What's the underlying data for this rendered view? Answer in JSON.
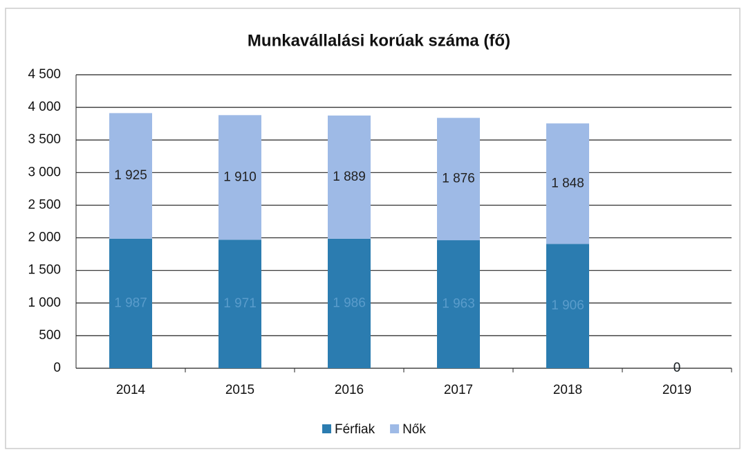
{
  "chart_data": {
    "type": "stacked-bar",
    "title": "Munkavállalási korúak száma (fő)",
    "categories": [
      "2014",
      "2015",
      "2016",
      "2017",
      "2018",
      "2019"
    ],
    "series": [
      {
        "name": "Férfiak",
        "color": "#2b7cb0",
        "values": [
          1987,
          1971,
          1986,
          1963,
          1906,
          0
        ],
        "value_labels": [
          "1 987",
          "1 971",
          "1 986",
          "1 963",
          "1 906",
          "0"
        ]
      },
      {
        "name": "Nők",
        "color": "#9ebae6",
        "values": [
          1925,
          1910,
          1889,
          1876,
          1848,
          0
        ],
        "value_labels": [
          "1 925",
          "1 910",
          "1 889",
          "1 876",
          "1 848",
          "0"
        ]
      }
    ],
    "ylim": [
      0,
      4500
    ],
    "yticks": [
      {
        "value": 0,
        "label": "0"
      },
      {
        "value": 500,
        "label": "500"
      },
      {
        "value": 1000,
        "label": "1 000"
      },
      {
        "value": 1500,
        "label": "1 500"
      },
      {
        "value": 2000,
        "label": "2 000"
      },
      {
        "value": 2500,
        "label": "2 500"
      },
      {
        "value": 3000,
        "label": "3 000"
      },
      {
        "value": 3500,
        "label": "3 500"
      },
      {
        "value": 4000,
        "label": "4 000"
      },
      {
        "value": 4500,
        "label": "4 500"
      }
    ],
    "grid": true,
    "legend": "bottom"
  }
}
